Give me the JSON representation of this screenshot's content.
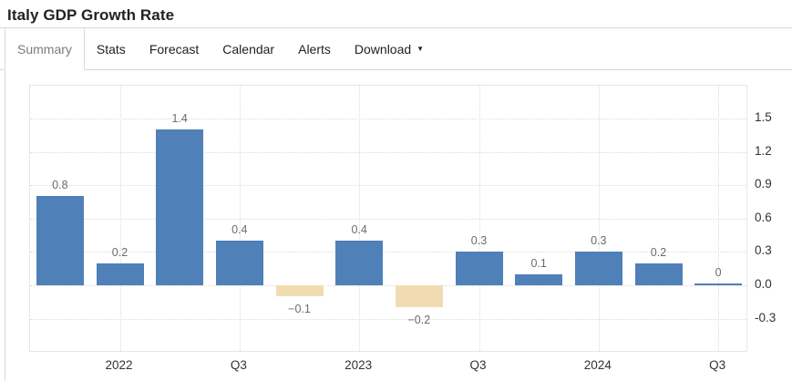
{
  "header": {
    "title": "Italy GDP Growth Rate"
  },
  "tabs": {
    "items": [
      {
        "label": "Summary",
        "active": true
      },
      {
        "label": "Stats",
        "active": false
      },
      {
        "label": "Forecast",
        "active": false
      },
      {
        "label": "Calendar",
        "active": false
      },
      {
        "label": "Alerts",
        "active": false
      },
      {
        "label": "Download",
        "active": false,
        "caret": "▼"
      }
    ]
  },
  "chart_data": {
    "type": "bar",
    "title": "",
    "xlabel": "",
    "ylabel": "",
    "values": [
      0.8,
      0.2,
      1.4,
      0.4,
      -0.1,
      0.4,
      -0.2,
      0.3,
      0.1,
      0.3,
      0.2,
      0
    ],
    "bar_labels": [
      "0.8",
      "0.2",
      "1.4",
      "0.4",
      "−0.1",
      "0.4",
      "−0.2",
      "0.3",
      "0.1",
      "0.3",
      "0.2",
      "0"
    ],
    "x_ticks": [
      {
        "label": "2022",
        "category_index": 1
      },
      {
        "label": "Q3",
        "category_index": 3
      },
      {
        "label": "2023",
        "category_index": 5
      },
      {
        "label": "Q3",
        "category_index": 7
      },
      {
        "label": "2024",
        "category_index": 9
      },
      {
        "label": "Q3",
        "category_index": 11
      }
    ],
    "y_ticks": [
      1.5,
      1.2,
      0.9,
      0.6,
      0.3,
      0.0,
      -0.3
    ],
    "y_tick_labels": [
      "1.5",
      "1.2",
      "0.9",
      "0.6",
      "0.3",
      "0.0",
      "-0.3"
    ],
    "ylim": [
      -0.6,
      1.8
    ],
    "grid": "dotted",
    "legend": "none",
    "colors": {
      "positive": "#4f80b8",
      "negative": "#f1dcb2"
    }
  }
}
